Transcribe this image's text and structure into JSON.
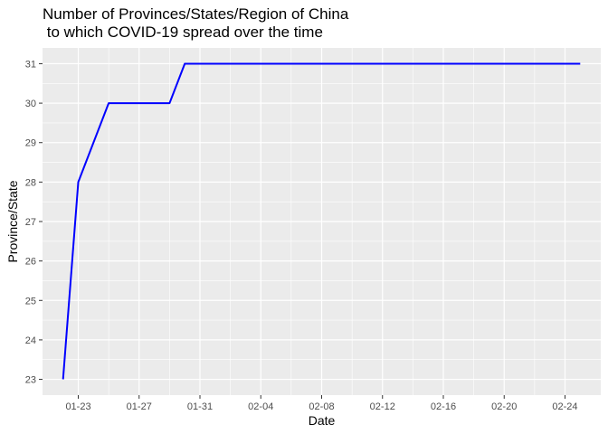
{
  "chart_data": {
    "type": "line",
    "title_lines": [
      "Number of Provinces/States/Region of China",
      " to which COVID-19 spread over the time"
    ],
    "xlabel": "Date",
    "ylabel": "Province/State",
    "x_tick_labels": [
      "01-23",
      "01-27",
      "01-31",
      "02-04",
      "02-08",
      "02-12",
      "02-16",
      "02-20",
      "02-24"
    ],
    "x_tick_days": [
      23,
      27,
      31,
      35,
      39,
      43,
      47,
      51,
      55
    ],
    "y_ticks": [
      23,
      24,
      25,
      26,
      27,
      28,
      29,
      30,
      31
    ],
    "xlim_days": [
      20.65,
      57.35
    ],
    "ylim": [
      22.6,
      31.4
    ],
    "grid": true,
    "line_color": "#0000ff",
    "panel_color": "#ebebeb",
    "series": [
      {
        "x_days": [
          22,
          23,
          25,
          29,
          30,
          56
        ],
        "x": [
          "01-22",
          "01-23",
          "01-25",
          "01-29",
          "01-30",
          "02-25"
        ],
        "values": [
          23,
          28,
          30,
          30,
          31,
          31
        ]
      }
    ]
  }
}
